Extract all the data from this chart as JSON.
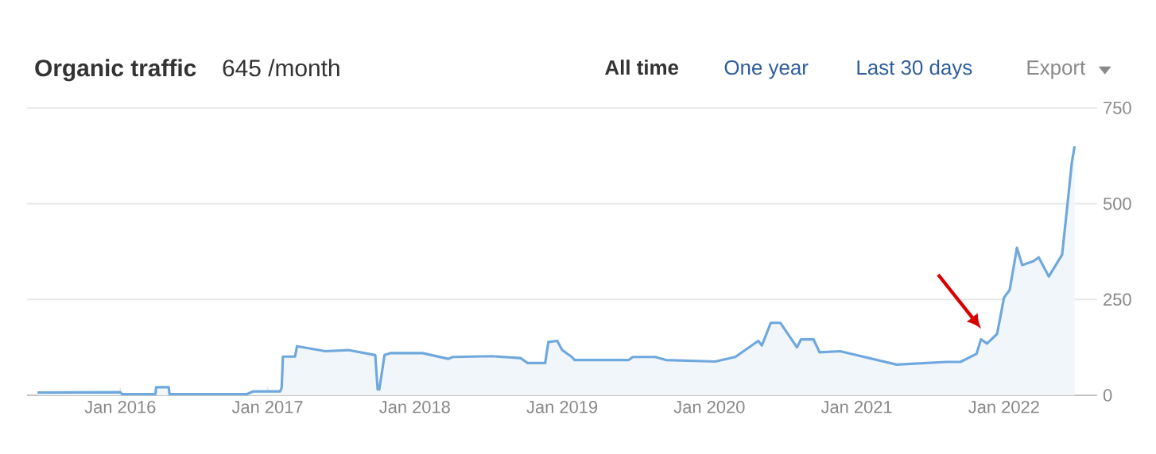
{
  "chart_data": {
    "type": "area",
    "title": "Organic traffic",
    "subtitle": "645 /month",
    "annotations": [
      "All time",
      "One year",
      "Last 30 days",
      "Export"
    ],
    "x": [
      "2015-06-10",
      "2016-01-01",
      "2016-01-05",
      "2016-03-28",
      "2016-03-30",
      "2016-04-30",
      "2016-05-02",
      "2016-11-10",
      "2016-11-25",
      "2017-02-01",
      "2017-02-05",
      "2017-02-08",
      "2017-03-10",
      "2017-03-15",
      "2017-05-25",
      "2017-07-20",
      "2017-09-25",
      "2017-10-01",
      "2017-10-05",
      "2017-10-18",
      "2017-11-01",
      "2018-01-20",
      "2018-03-25",
      "2018-04-05",
      "2018-07-10",
      "2018-09-20",
      "2018-10-08",
      "2018-11-20",
      "2018-11-28",
      "2018-12-20",
      "2019-01-01",
      "2019-01-25",
      "2019-02-01",
      "2019-06-15",
      "2019-06-25",
      "2019-08-20",
      "2019-09-15",
      "2020-01-15",
      "2020-03-05",
      "2020-05-01",
      "2020-05-10",
      "2020-06-01",
      "2020-06-25",
      "2020-07-20",
      "2020-08-05",
      "2020-08-15",
      "2020-09-15",
      "2020-09-30",
      "2020-11-20",
      "2021-04-10",
      "2021-08-10",
      "2021-09-15",
      "2021-10-25",
      "2021-11-05",
      "2021-11-20",
      "2021-12-15",
      "2022-01-01",
      "2022-01-15",
      "2022-02-02",
      "2022-02-15",
      "2022-03-15",
      "2022-03-28",
      "2022-04-22",
      "2022-05-25",
      "2022-06-10",
      "2022-06-18",
      "2022-06-25"
    ],
    "values": [
      7,
      8,
      3,
      3,
      21,
      21,
      3,
      3,
      10,
      10,
      20,
      101,
      101,
      128,
      115,
      118,
      105,
      15,
      15,
      105,
      110,
      110,
      95,
      100,
      102,
      97,
      84,
      84,
      139,
      142,
      118,
      100,
      92,
      92,
      100,
      100,
      92,
      88,
      100,
      142,
      130,
      189,
      189,
      150,
      125,
      146,
      146,
      112,
      115,
      80,
      87,
      87,
      108,
      146,
      135,
      160,
      255,
      275,
      385,
      340,
      350,
      360,
      310,
      367,
      525,
      607,
      650
    ],
    "color": "#6fa8dc",
    "xlim": [
      "2015-05-15",
      "2022-08-20"
    ],
    "xticks": [
      {
        "value": "2016-01-01",
        "label": "Jan 2016"
      },
      {
        "value": "2017-01-01",
        "label": "Jan 2017"
      },
      {
        "value": "2018-01-01",
        "label": "Jan 2018"
      },
      {
        "value": "2019-01-01",
        "label": "Jan 2019"
      },
      {
        "value": "2020-01-01",
        "label": "Jan 2020"
      },
      {
        "value": "2021-01-01",
        "label": "Jan 2021"
      },
      {
        "value": "2022-01-01",
        "label": "Jan 2022"
      }
    ],
    "ylim": [
      0,
      750
    ],
    "yticks": [
      0,
      250,
      500,
      750
    ],
    "grid": "y",
    "marker": "none",
    "line_style": "solid"
  }
}
